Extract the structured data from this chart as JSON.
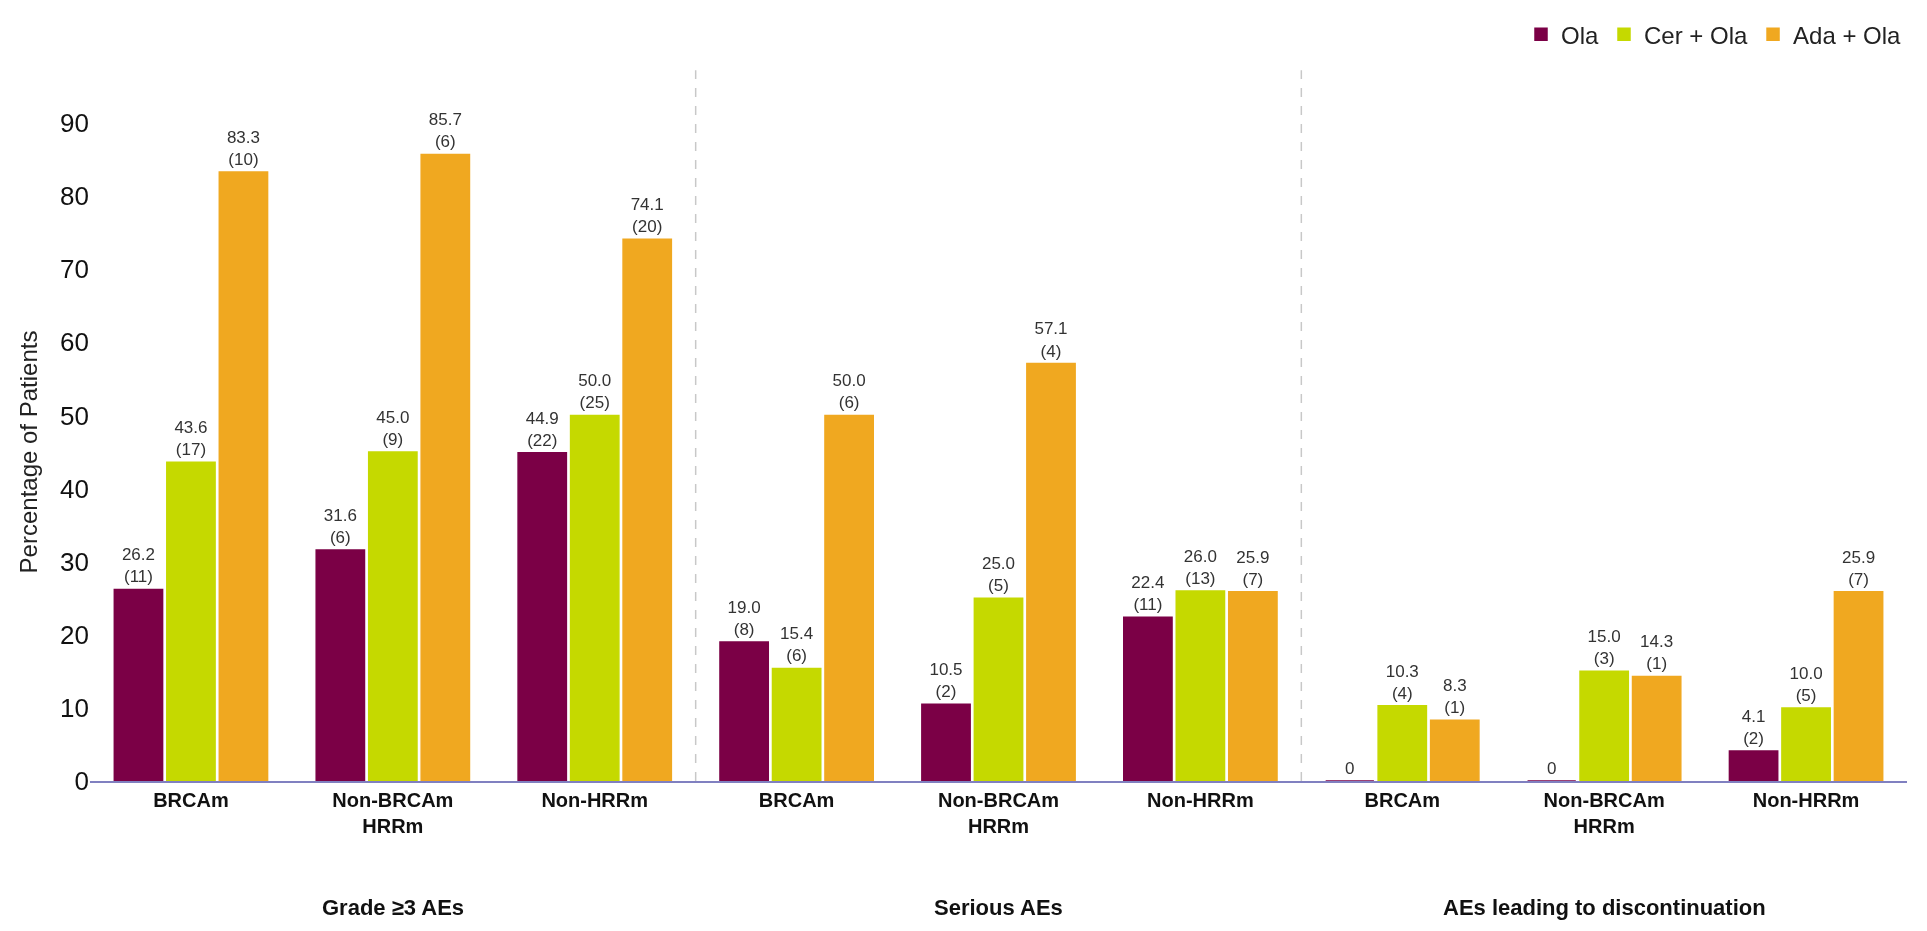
{
  "chart_data": {
    "type": "bar",
    "ylabel": "Percentage of Patients",
    "categories": [
      "BRCAm",
      "Non-BRCAm\nHRRm",
      "Non-HRRm",
      "BRCAm",
      "Non-BRCAm\nHRRm",
      "Non-HRRm",
      "BRCAm",
      "Non-BRCAm\nHRRm",
      "Non-HRRm"
    ],
    "series": [
      {
        "name": "Ola",
        "color": "#7b0046",
        "values": [
          26.2,
          31.6,
          44.9,
          19.0,
          10.5,
          22.4,
          0,
          0,
          4.1
        ],
        "value_labels": [
          "26.2\n(11)",
          "31.6\n(6)",
          "44.9\n(22)",
          "19.0\n(8)",
          "10.5\n(2)",
          "22.4\n(11)",
          "0",
          "0",
          "4.1\n(2)"
        ]
      },
      {
        "name": "Cer + Ola",
        "color": "#c5d900",
        "values": [
          43.6,
          45.0,
          50.0,
          15.4,
          25.0,
          26.0,
          10.3,
          15.0,
          10.0
        ],
        "value_labels": [
          "43.6\n(17)",
          "45.0\n(9)",
          "50.0\n(25)",
          "15.4\n(6)",
          "25.0\n(5)",
          "26.0\n(13)",
          "10.3\n(4)",
          "15.0\n(3)",
          "10.0\n(5)"
        ]
      },
      {
        "name": "Ada + Ola",
        "color": "#f0a820",
        "values": [
          83.3,
          85.7,
          74.1,
          50.0,
          57.1,
          25.9,
          8.3,
          14.3,
          25.9
        ],
        "value_labels": [
          "83.3\n(10)",
          "85.7\n(6)",
          "74.1\n(20)",
          "50.0\n(6)",
          "57.1\n(4)",
          "25.9\n(7)",
          "8.3\n(1)",
          "14.3\n(1)",
          "25.9\n(7)"
        ]
      }
    ],
    "annotations": [
      "Grade ≥3 AEs",
      "Serious AEs",
      "AEs leading to discontinuation"
    ],
    "ylim": [
      0,
      90
    ],
    "yticks": [
      0,
      10,
      20,
      30,
      40,
      50,
      60,
      70,
      80,
      90
    ],
    "legend": "top right"
  }
}
